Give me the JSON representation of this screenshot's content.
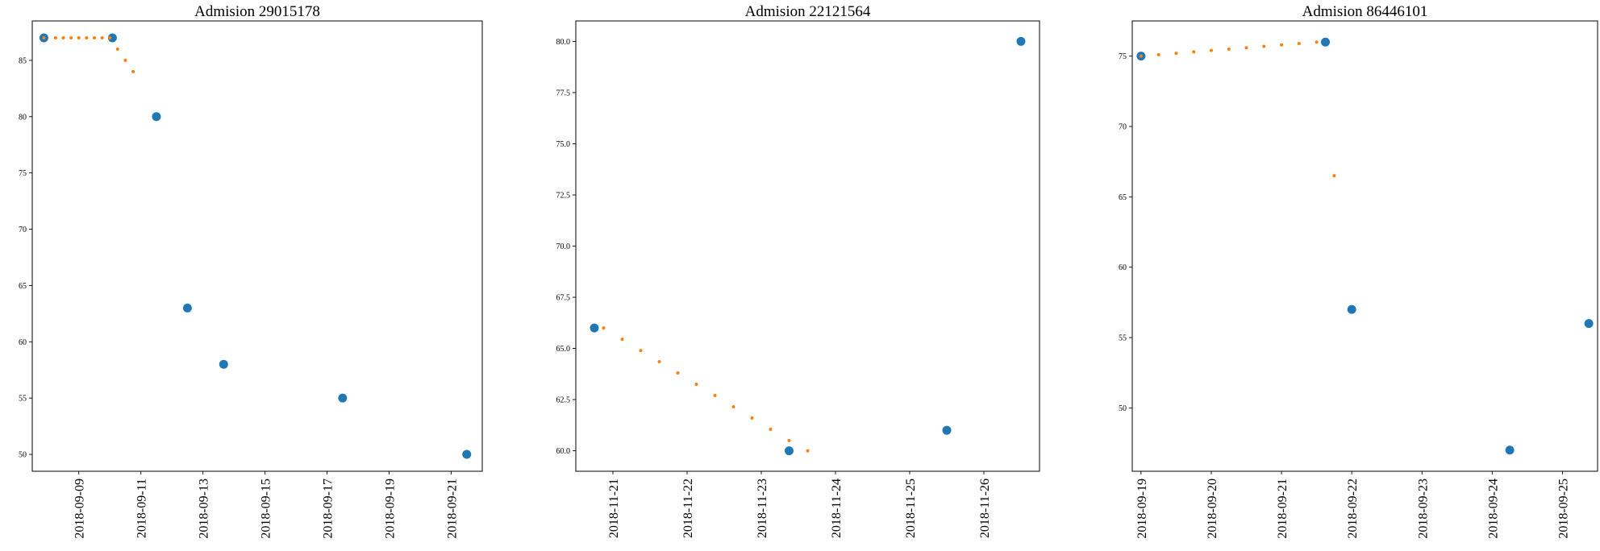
{
  "colors": {
    "observed": "#1f77b4",
    "interpolated": "#ff7f0e",
    "axes": "#000000",
    "background": "#ffffff"
  },
  "chart_data": [
    {
      "type": "scatter",
      "title": "Admision 29015178",
      "xlabel": "",
      "ylabel": "",
      "x_axis": "date",
      "xlim": [
        "2018-09-07 12:00",
        "2018-09-22 00:00"
      ],
      "ylim": [
        48.5,
        88.5
      ],
      "grid": false,
      "x_ticks": [
        "2018-09-09",
        "2018-09-11",
        "2018-09-13",
        "2018-09-15",
        "2018-09-17",
        "2018-09-19",
        "2018-09-21"
      ],
      "y_ticks": [
        "50",
        "55",
        "60",
        "65",
        "70",
        "75",
        "80",
        "85"
      ],
      "series": [
        {
          "role": "observed",
          "color": "#1f77b4",
          "marker": "large-dot",
          "points": [
            {
              "x": "2018-09-07 21:00",
              "y": 87
            },
            {
              "x": "2018-09-10 02:00",
              "y": 87
            },
            {
              "x": "2018-09-11 12:00",
              "y": 80
            },
            {
              "x": "2018-09-12 12:00",
              "y": 63
            },
            {
              "x": "2018-09-13 16:00",
              "y": 58
            },
            {
              "x": "2018-09-17 12:00",
              "y": 55
            },
            {
              "x": "2018-09-21 12:00",
              "y": 50
            }
          ]
        },
        {
          "role": "interpolated",
          "color": "#ff7f0e",
          "marker": "small-dot",
          "points": [
            {
              "x": "2018-09-07 21:00",
              "y": 87
            },
            {
              "x": "2018-09-08 06:00",
              "y": 87
            },
            {
              "x": "2018-09-08 12:00",
              "y": 87
            },
            {
              "x": "2018-09-08 18:00",
              "y": 87
            },
            {
              "x": "2018-09-09 00:00",
              "y": 87
            },
            {
              "x": "2018-09-09 06:00",
              "y": 87
            },
            {
              "x": "2018-09-09 12:00",
              "y": 87
            },
            {
              "x": "2018-09-09 18:00",
              "y": 87
            },
            {
              "x": "2018-09-10 00:00",
              "y": 87
            },
            {
              "x": "2018-09-10 06:00",
              "y": 86
            },
            {
              "x": "2018-09-10 12:00",
              "y": 85
            },
            {
              "x": "2018-09-10 18:00",
              "y": 84
            }
          ]
        }
      ]
    },
    {
      "type": "scatter",
      "title": "Admision 22121564",
      "xlabel": "",
      "ylabel": "",
      "x_axis": "date",
      "xlim": [
        "2018-11-20 12:00",
        "2018-11-26 18:00"
      ],
      "ylim": [
        59.0,
        81.0
      ],
      "grid": false,
      "x_ticks": [
        "2018-11-21",
        "2018-11-22",
        "2018-11-23",
        "2018-11-24",
        "2018-11-25",
        "2018-11-26"
      ],
      "y_ticks": [
        "60.0",
        "62.5",
        "65.0",
        "67.5",
        "70.0",
        "72.5",
        "75.0",
        "77.5",
        "80.0"
      ],
      "series": [
        {
          "role": "observed",
          "color": "#1f77b4",
          "marker": "large-dot",
          "points": [
            {
              "x": "2018-11-20 18:00",
              "y": 66
            },
            {
              "x": "2018-11-23 09:00",
              "y": 60
            },
            {
              "x": "2018-11-25 12:00",
              "y": 61
            },
            {
              "x": "2018-11-26 12:00",
              "y": 80
            }
          ]
        },
        {
          "role": "interpolated",
          "color": "#ff7f0e",
          "marker": "small-dot",
          "points": [
            {
              "x": "2018-11-20 21:00",
              "y": 66.0
            },
            {
              "x": "2018-11-21 03:00",
              "y": 65.45
            },
            {
              "x": "2018-11-21 09:00",
              "y": 64.9
            },
            {
              "x": "2018-11-21 15:00",
              "y": 64.35
            },
            {
              "x": "2018-11-21 21:00",
              "y": 63.8
            },
            {
              "x": "2018-11-22 03:00",
              "y": 63.25
            },
            {
              "x": "2018-11-22 09:00",
              "y": 62.7
            },
            {
              "x": "2018-11-22 15:00",
              "y": 62.15
            },
            {
              "x": "2018-11-22 21:00",
              "y": 61.6
            },
            {
              "x": "2018-11-23 03:00",
              "y": 61.05
            },
            {
              "x": "2018-11-23 09:00",
              "y": 60.5
            },
            {
              "x": "2018-11-23 15:00",
              "y": 60.0
            }
          ]
        }
      ]
    },
    {
      "type": "scatter",
      "title": "Admision 86446101",
      "xlabel": "",
      "ylabel": "",
      "x_axis": "date",
      "xlim": [
        "2018-09-18 21:00",
        "2018-09-25 12:00"
      ],
      "ylim": [
        45.5,
        77.5
      ],
      "grid": false,
      "x_ticks": [
        "2018-09-19",
        "2018-09-20",
        "2018-09-21",
        "2018-09-22",
        "2018-09-23",
        "2018-09-24",
        "2018-09-25"
      ],
      "y_ticks": [
        "50",
        "55",
        "60",
        "65",
        "70",
        "75"
      ],
      "series": [
        {
          "role": "observed",
          "color": "#1f77b4",
          "marker": "large-dot",
          "points": [
            {
              "x": "2018-09-19 00:00",
              "y": 75
            },
            {
              "x": "2018-09-21 15:00",
              "y": 76
            },
            {
              "x": "2018-09-22 00:00",
              "y": 57
            },
            {
              "x": "2018-09-24 06:00",
              "y": 47
            },
            {
              "x": "2018-09-25 09:00",
              "y": 56
            }
          ]
        },
        {
          "role": "interpolated",
          "color": "#ff7f0e",
          "marker": "small-dot",
          "points": [
            {
              "x": "2018-09-19 00:00",
              "y": 75.0
            },
            {
              "x": "2018-09-19 06:00",
              "y": 75.1
            },
            {
              "x": "2018-09-19 12:00",
              "y": 75.2
            },
            {
              "x": "2018-09-19 18:00",
              "y": 75.3
            },
            {
              "x": "2018-09-20 00:00",
              "y": 75.4
            },
            {
              "x": "2018-09-20 06:00",
              "y": 75.5
            },
            {
              "x": "2018-09-20 12:00",
              "y": 75.6
            },
            {
              "x": "2018-09-20 18:00",
              "y": 75.7
            },
            {
              "x": "2018-09-21 00:00",
              "y": 75.8
            },
            {
              "x": "2018-09-21 06:00",
              "y": 75.9
            },
            {
              "x": "2018-09-21 12:00",
              "y": 76.0
            },
            {
              "x": "2018-09-21 18:00",
              "y": 66.5
            }
          ]
        }
      ]
    }
  ]
}
